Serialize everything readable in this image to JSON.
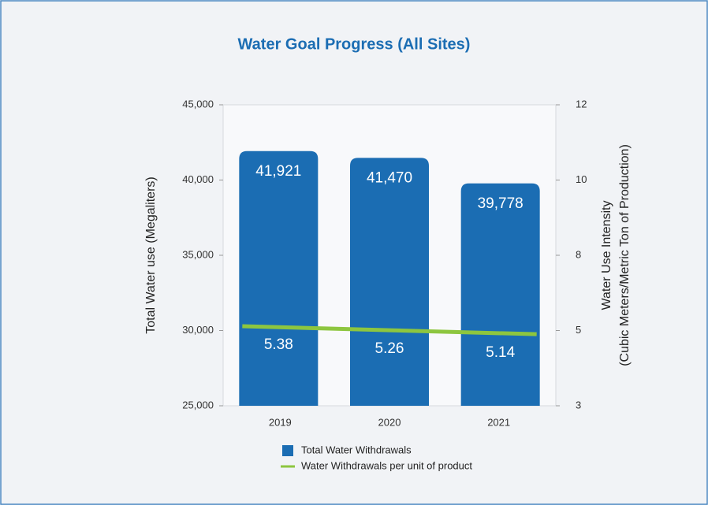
{
  "chart_data": {
    "type": "bar",
    "title": "Water Goal Progress (All Sites)",
    "categories": [
      "2019",
      "2020",
      "2021"
    ],
    "ylabel": "Total Water use (Megaliters)",
    "y2label": [
      "Water Use Intensity",
      "(Cubic Meters/Metric Ton of Production)"
    ],
    "ylim": [
      25000,
      45000
    ],
    "yticks": [
      {
        "value": 25000,
        "label": "25,000"
      },
      {
        "value": 30000,
        "label": "30,000"
      },
      {
        "value": 35000,
        "label": "35,000"
      },
      {
        "value": 40000,
        "label": "40,000"
      },
      {
        "value": 45000,
        "label": "45,000"
      }
    ],
    "y2lim": [
      3,
      12
    ],
    "y2ticks": [
      3,
      {
        "value": 5.25,
        "label": "5"
      },
      {
        "value": 7.5,
        "label": "8"
      },
      {
        "value": 9.75,
        "label": "10"
      },
      12
    ],
    "series": [
      {
        "name": "Total Water Withdrawals",
        "type": "bar",
        "color": "#1b6db3",
        "values": [
          41921,
          41470,
          39778
        ],
        "value_labels": [
          "41,921",
          "41,470",
          "39,778"
        ]
      },
      {
        "name": "Water Withdrawals per unit of product",
        "type": "line",
        "axis": "y2",
        "color": "#8dc63f",
        "values": [
          5.38,
          5.26,
          5.14
        ]
      }
    ]
  }
}
